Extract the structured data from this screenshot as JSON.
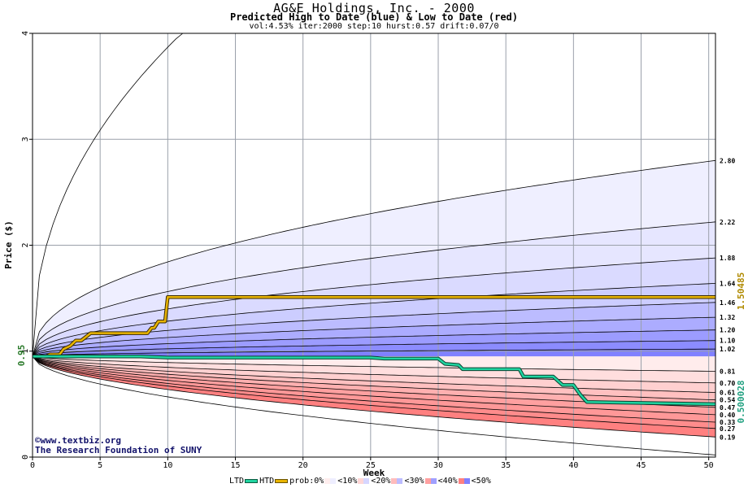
{
  "header": {
    "title": "AG&E Holdings, Inc. - 2000",
    "subtitle": "Predicted High to Date (blue) &  Low to Date (red)",
    "params": "vol:4.53% iter:2000 step:10 hurst:0.57 drift:0.07/0"
  },
  "credits": {
    "line1": "©www.textbiz.org",
    "line2": "The Research Foundation of SUNY"
  },
  "legend": {
    "ltd_label": "LTD",
    "htd_label": "HTD",
    "prob_label": "prob:0%",
    "bins": [
      "<10%",
      "<20%",
      "<30%",
      "<40%",
      "<50%"
    ],
    "ltd_color": "#20d4a0",
    "htd_color": "#e8b400"
  },
  "chart_data": {
    "type": "area",
    "xlabel": "Week",
    "ylabel": "Price ($)",
    "xlim": [
      0,
      50.5
    ],
    "ylim": [
      0,
      4
    ],
    "x_ticks": [
      0,
      5,
      10,
      15,
      20,
      25,
      30,
      35,
      40,
      45,
      50
    ],
    "y_ticks": [
      1,
      2,
      3,
      4
    ],
    "grid": true,
    "start_price": 0.95,
    "start_label": "0.95",
    "htd_final_label": "1.50485",
    "ltd_final_label": "0.500028",
    "high_quantiles": [
      {
        "value": 1.02,
        "label": "1.02"
      },
      {
        "value": 1.1,
        "label": "1.10"
      },
      {
        "value": 1.2,
        "label": "1.20"
      },
      {
        "value": 1.32,
        "label": "1.32"
      },
      {
        "value": 1.46,
        "label": "1.46"
      },
      {
        "value": 1.64,
        "label": "1.64"
      },
      {
        "value": 1.88,
        "label": "1.88"
      },
      {
        "value": 2.22,
        "label": "2.22"
      },
      {
        "value": 2.8,
        "label": "2.80"
      },
      {
        "value": 7.0,
        "label": ""
      }
    ],
    "low_quantiles": [
      {
        "value": 0.19,
        "label": "0.19"
      },
      {
        "value": 0.27,
        "label": "0.27"
      },
      {
        "value": 0.33,
        "label": "0.33"
      },
      {
        "value": 0.4,
        "label": "0.40"
      },
      {
        "value": 0.47,
        "label": "0.47"
      },
      {
        "value": 0.54,
        "label": "0.54"
      },
      {
        "value": 0.61,
        "label": "0.61"
      },
      {
        "value": 0.7,
        "label": "0.70"
      },
      {
        "value": 0.81,
        "label": "0.81"
      },
      {
        "value": 0.02,
        "label": ""
      }
    ],
    "htd_path": [
      [
        0,
        0.95
      ],
      [
        1,
        0.95
      ],
      [
        1.3,
        0.97
      ],
      [
        2,
        0.97
      ],
      [
        2.3,
        1.02
      ],
      [
        2.8,
        1.05
      ],
      [
        3.2,
        1.1
      ],
      [
        3.6,
        1.1
      ],
      [
        4.3,
        1.17
      ],
      [
        6,
        1.17
      ],
      [
        8.5,
        1.17
      ],
      [
        8.8,
        1.22
      ],
      [
        9,
        1.22
      ],
      [
        9.3,
        1.28
      ],
      [
        9.8,
        1.28
      ],
      [
        10,
        1.51
      ],
      [
        20,
        1.51
      ],
      [
        50.5,
        1.51
      ]
    ],
    "ltd_path": [
      [
        0,
        0.95
      ],
      [
        8,
        0.95
      ],
      [
        10,
        0.94
      ],
      [
        25,
        0.94
      ],
      [
        26,
        0.93
      ],
      [
        30,
        0.93
      ],
      [
        30.5,
        0.88
      ],
      [
        31.5,
        0.87
      ],
      [
        31.8,
        0.83
      ],
      [
        36,
        0.83
      ],
      [
        36.3,
        0.76
      ],
      [
        38.5,
        0.76
      ],
      [
        39.2,
        0.68
      ],
      [
        40,
        0.68
      ],
      [
        40.5,
        0.59
      ],
      [
        41,
        0.52
      ],
      [
        50.5,
        0.5
      ]
    ]
  }
}
